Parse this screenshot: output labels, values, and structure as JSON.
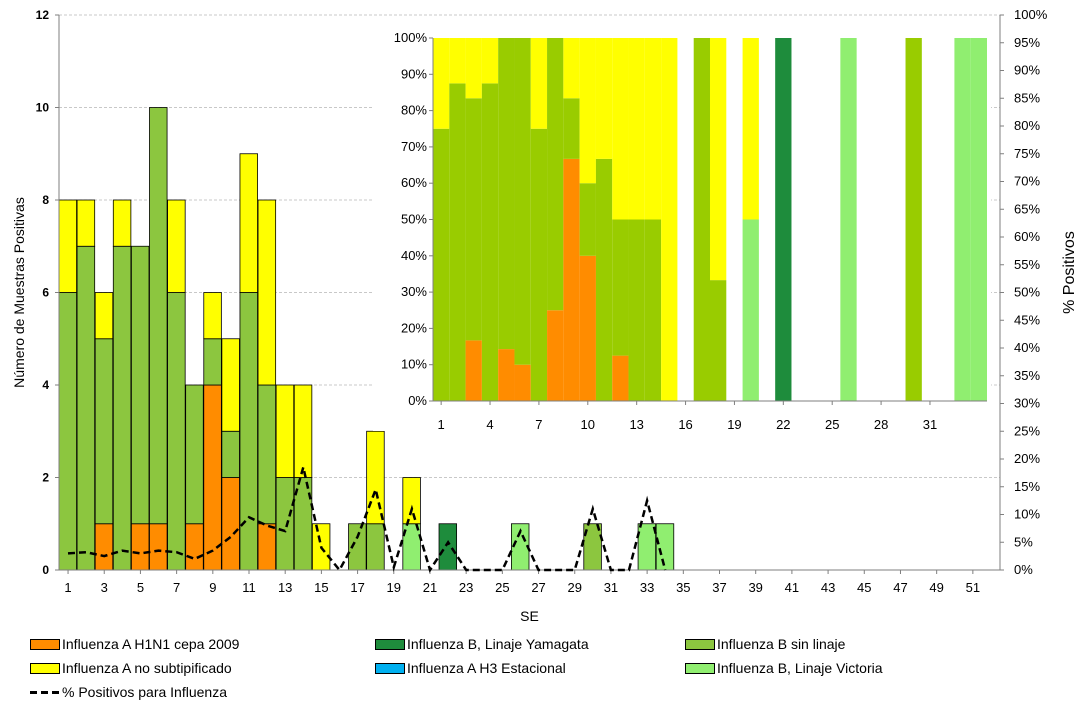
{
  "chart_data": {
    "type": "bar",
    "stacked": true,
    "xlabel": "SE",
    "ylabel": "Número de Muestras Positivas",
    "y2label": "% Positivos",
    "ylim": [
      0,
      12
    ],
    "y_ticks": [
      "0",
      "2",
      "4",
      "6",
      "8",
      "10",
      "12"
    ],
    "y2lim": [
      0,
      100
    ],
    "y2_ticks": [
      "0%",
      "5%",
      "10%",
      "15%",
      "20%",
      "25%",
      "30%",
      "35%",
      "40%",
      "45%",
      "50%",
      "55%",
      "60%",
      "65%",
      "70%",
      "75%",
      "80%",
      "85%",
      "90%",
      "95%",
      "100%"
    ],
    "x_tick_labels": [
      "1",
      "3",
      "5",
      "7",
      "9",
      "11",
      "13",
      "15",
      "17",
      "19",
      "21",
      "23",
      "25",
      "27",
      "29",
      "31",
      "33",
      "35",
      "37",
      "39",
      "41",
      "43",
      "45",
      "47",
      "49",
      "51"
    ],
    "grid": "horizontal",
    "colors": {
      "h1n1": "#FF8C00",
      "a_nosub": "#FFFF00",
      "h3": "#00B0F0",
      "b_yamagata": "#1E8C3C",
      "b_sinlinaje": "#8CC63F",
      "b_victoria": "#90EE70",
      "inset_b_sinlinaje": "#99CC00"
    },
    "stack_order": [
      "h1n1",
      "b_yamagata",
      "h3",
      "b_sinlinaje",
      "b_victoria",
      "a_nosub"
    ],
    "series": [
      {
        "key": "h1n1",
        "name": "Influenza A H1N1 cepa 2009",
        "weeks": [
          3,
          5,
          6,
          8,
          9,
          10,
          12
        ],
        "values": [
          1,
          1,
          1,
          1,
          4,
          2,
          1
        ]
      },
      {
        "key": "b_yamagata",
        "name": "Influenza B, Linaje Yamagata",
        "weeks": [
          22
        ],
        "values": [
          1
        ]
      },
      {
        "key": "b_sinlinaje",
        "name": "Influenza B sin linaje",
        "weeks": [
          1,
          2,
          3,
          4,
          5,
          6,
          7,
          8,
          9,
          10,
          11,
          12,
          13,
          14,
          17,
          18,
          30
        ],
        "values": [
          6,
          7,
          4,
          7,
          6,
          9,
          6,
          3,
          1,
          1,
          6,
          3,
          2,
          2,
          1,
          1,
          1
        ]
      },
      {
        "key": "a_nosub",
        "name": "Influenza A no subtipificado",
        "weeks": [
          1,
          2,
          3,
          4,
          7,
          9,
          10,
          11,
          12,
          13,
          14,
          15,
          18,
          20
        ],
        "values": [
          2,
          1,
          1,
          1,
          2,
          1,
          2,
          3,
          4,
          2,
          2,
          1,
          2,
          1
        ]
      },
      {
        "key": "h3",
        "name": "Influenza A H3 Estacional",
        "weeks": [],
        "values": []
      },
      {
        "key": "b_victoria",
        "name": "Influenza B, Linaje Victoria",
        "weeks": [
          20,
          26,
          33,
          34
        ],
        "values": [
          1,
          1,
          1,
          1
        ]
      }
    ],
    "line": {
      "name": "% Positivos para Influenza",
      "weeks": [
        1,
        2,
        3,
        4,
        5,
        6,
        7,
        8,
        9,
        10,
        11,
        12,
        13,
        14,
        15,
        16,
        17,
        18,
        19,
        20,
        21,
        22,
        23,
        24,
        25,
        26,
        27,
        28,
        29,
        30,
        31,
        32,
        33,
        34
      ],
      "values": [
        3,
        3.2,
        2.5,
        3.5,
        3,
        3.5,
        3.2,
        2,
        3.5,
        6,
        9.5,
        8,
        7,
        18.5,
        4,
        0,
        6,
        14.5,
        0.5,
        11,
        0,
        5,
        0,
        0,
        0,
        7,
        0,
        0,
        0,
        11,
        0,
        0,
        12.5,
        0
      ]
    },
    "inset": {
      "type": "bar",
      "stacked_percent": true,
      "y_ticks": [
        "0%",
        "10%",
        "20%",
        "30%",
        "40%",
        "50%",
        "60%",
        "70%",
        "80%",
        "90%",
        "100%"
      ],
      "x_tick_labels": [
        "1",
        "4",
        "7",
        "10",
        "13",
        "16",
        "19",
        "22",
        "25",
        "28",
        "31"
      ],
      "weeks": [
        1,
        2,
        3,
        4,
        5,
        6,
        7,
        8,
        9,
        10,
        11,
        12,
        13,
        14,
        15,
        16,
        17,
        18,
        19,
        20,
        21,
        22,
        23,
        24,
        25,
        26,
        27,
        28,
        29,
        30,
        31,
        32,
        33,
        34
      ],
      "h1n1": [
        0,
        0,
        16.7,
        0,
        14.3,
        10,
        0,
        25,
        66.7,
        40,
        0,
        12.5,
        0,
        0,
        0,
        0,
        0,
        0,
        0,
        0,
        0,
        0,
        0,
        0,
        0,
        0,
        0,
        0,
        0,
        0,
        0,
        0,
        0,
        0
      ],
      "b_sinlinaje": [
        75,
        87.5,
        66.7,
        87.5,
        85.7,
        90,
        75,
        75,
        16.7,
        20,
        66.7,
        37.5,
        50,
        50,
        0,
        0,
        100,
        33.3,
        0,
        0,
        0,
        0,
        0,
        0,
        0,
        0,
        0,
        0,
        0,
        100,
        0,
        0,
        0,
        0
      ],
      "b_yamagata": [
        0,
        0,
        0,
        0,
        0,
        0,
        0,
        0,
        0,
        0,
        0,
        0,
        0,
        0,
        0,
        0,
        0,
        0,
        0,
        0,
        0,
        100,
        0,
        0,
        0,
        0,
        0,
        0,
        0,
        0,
        0,
        0,
        0,
        0
      ],
      "b_victoria": [
        0,
        0,
        0,
        0,
        0,
        0,
        0,
        0,
        0,
        0,
        0,
        0,
        0,
        0,
        0,
        0,
        0,
        0,
        0,
        50,
        0,
        0,
        0,
        0,
        0,
        100,
        0,
        0,
        0,
        0,
        0,
        0,
        100,
        100
      ],
      "a_nosub": [
        25,
        12.5,
        16.6,
        12.5,
        0,
        0,
        25,
        0,
        16.6,
        40,
        33.3,
        50,
        50,
        50,
        100,
        0,
        0,
        66.7,
        0,
        50,
        0,
        0,
        0,
        0,
        0,
        0,
        0,
        0,
        0,
        0,
        0,
        0,
        0,
        0
      ]
    }
  },
  "legend": {
    "h1n1": "Influenza A H1N1 cepa 2009",
    "b_yamagata": "Influenza B, Linaje Yamagata",
    "b_sinlinaje": "Influenza B sin linaje",
    "a_nosub": "Influenza A no subtipificado",
    "h3": "Influenza A H3 Estacional",
    "b_victoria": "Influenza B, Linaje Victoria",
    "line": "% Positivos para Influenza"
  }
}
